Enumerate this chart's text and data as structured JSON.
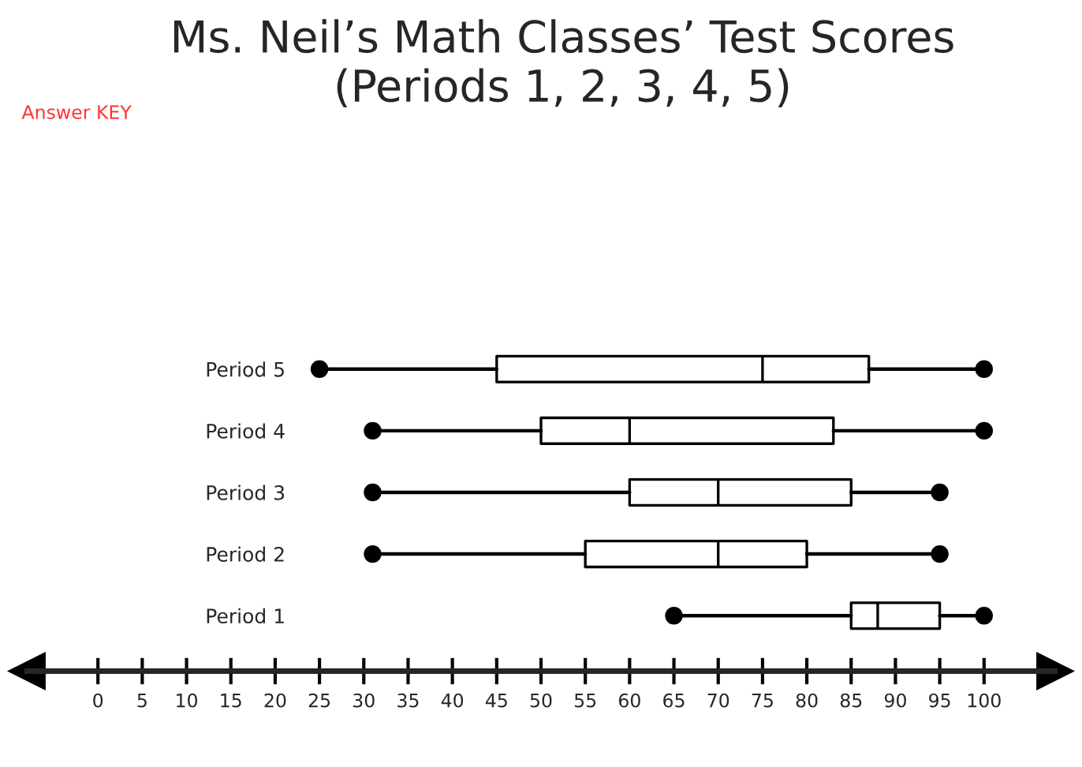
{
  "chart_data": {
    "type": "box",
    "title": "Ms. Neil’s Math Classes’ Test Scores\n(Periods 1, 2, 3, 4, 5)",
    "annotations": [
      "Answer KEY"
    ],
    "orientation": "horizontal",
    "categories": [
      "Period 5",
      "Period 4",
      "Period 3",
      "Period 2",
      "Period 1"
    ],
    "boxes": [
      {
        "low": 25,
        "q1": 45,
        "median": 75,
        "q3": 87,
        "high": 100
      },
      {
        "low": 31,
        "q1": 50,
        "median": 60,
        "q3": 83,
        "high": 100
      },
      {
        "low": 31,
        "q1": 60,
        "median": 70,
        "q3": 85,
        "high": 95
      },
      {
        "low": 31,
        "q1": 55,
        "median": 70,
        "q3": 80,
        "high": 95
      },
      {
        "low": 65,
        "q1": 85,
        "median": 88,
        "q3": 95,
        "high": 100
      }
    ],
    "series": [
      {
        "type": "scatter",
        "color": "#000000",
        "marker": "circle",
        "x": [
          "Period 5",
          "Period 5",
          "Period 4",
          "Period 4",
          "Period 3",
          "Period 3",
          "Period 2",
          "Period 2",
          "Period 1",
          "Period 1"
        ],
        "values": [
          25,
          100,
          31,
          100,
          31,
          95,
          31,
          95,
          65,
          100
        ]
      }
    ],
    "xlim": [
      -8,
      108
    ],
    "xticks": [
      0,
      5,
      10,
      15,
      20,
      25,
      30,
      35,
      40,
      45,
      50,
      55,
      60,
      65,
      70,
      75,
      80,
      85,
      90,
      95,
      100
    ],
    "grid": false
  }
}
